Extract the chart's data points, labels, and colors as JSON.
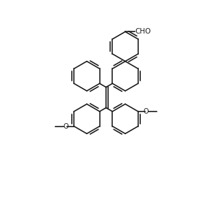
{
  "bg_color": "#ffffff",
  "line_color": "#1a1a1a",
  "line_width": 1.2,
  "figsize": [
    3.07,
    2.88
  ],
  "dpi": 100,
  "xlim": [
    0,
    10
  ],
  "ylim": [
    0,
    9.4
  ],
  "r": 0.72,
  "ao": 30,
  "cho_text": "CHO",
  "methoxy_text": "O",
  "ch3_text": ""
}
